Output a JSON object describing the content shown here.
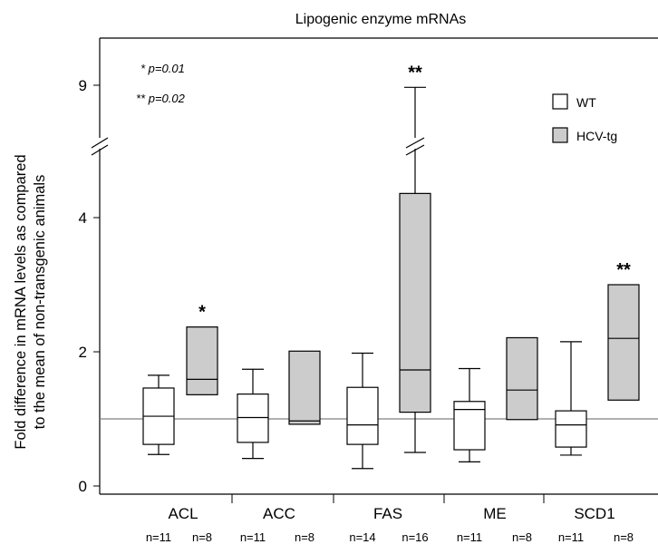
{
  "chart_data": {
    "type": "box",
    "title": "Lipogenic enzyme mRNAs",
    "ylabel": "Fold difference in mRNA levels as compared to the mean of non-transgenic animals",
    "ylabel_lines": [
      "Fold difference in mRNA levels as compared",
      "to the mean of non-transgenic animals"
    ],
    "y_scale": "broken axis: linear 0 to 4.6, break, then 9",
    "y_ticks": [
      "0",
      "2",
      "4",
      "9"
    ],
    "reference_line": 1,
    "legend_position": "top-right",
    "legend": [
      {
        "name": "WT",
        "color": "#ffffff"
      },
      {
        "name": "HCV-tg",
        "color": "#cccccc"
      }
    ],
    "notes": [
      "* p=0.01",
      "** p=0.02"
    ],
    "categories": [
      "ACL",
      "ACC",
      "FAS",
      "ME",
      "SCD1"
    ],
    "groups": [
      {
        "category": "ACL",
        "boxes": [
          {
            "series": "WT",
            "min": 0.47,
            "q1": 0.62,
            "median": 1.04,
            "q3": 1.46,
            "max": 1.65,
            "n": "n=11"
          },
          {
            "series": "HCV-tg",
            "q1": 1.36,
            "median": 1.59,
            "q3": 2.37,
            "n": "n=8"
          }
        ],
        "significance": "*"
      },
      {
        "category": "ACC",
        "boxes": [
          {
            "series": "WT",
            "min": 0.41,
            "q1": 0.65,
            "median": 1.02,
            "q3": 1.37,
            "max": 1.74,
            "n": "n=11"
          },
          {
            "series": "HCV-tg",
            "q1": 0.92,
            "median": 0.97,
            "q3": 2.01,
            "n": "n=8"
          }
        ],
        "significance": ""
      },
      {
        "category": "FAS",
        "boxes": [
          {
            "series": "WT",
            "min": 0.26,
            "q1": 0.62,
            "median": 0.91,
            "q3": 1.47,
            "max": 1.98,
            "n": "n=14"
          },
          {
            "series": "HCV-tg",
            "min": 0.5,
            "q1": 1.1,
            "median": 1.73,
            "q3": 4.36,
            "max": 8.9,
            "n": "n=16"
          }
        ],
        "significance": "**"
      },
      {
        "category": "ME",
        "boxes": [
          {
            "series": "WT",
            "min": 0.36,
            "q1": 0.54,
            "median": 1.14,
            "q3": 1.26,
            "max": 1.75,
            "n": "n=11"
          },
          {
            "series": "HCV-tg",
            "q1": 0.99,
            "median": 1.43,
            "q3": 2.21,
            "n": "n=8"
          }
        ],
        "significance": ""
      },
      {
        "category": "SCD1",
        "boxes": [
          {
            "series": "WT",
            "min": 0.46,
            "q1": 0.58,
            "median": 0.91,
            "q3": 1.12,
            "max": 2.15,
            "n": "n=11"
          },
          {
            "series": "HCV-tg",
            "q1": 1.28,
            "median": 2.2,
            "q3": 3.0,
            "n": "n=8"
          }
        ],
        "significance": "**"
      }
    ]
  }
}
